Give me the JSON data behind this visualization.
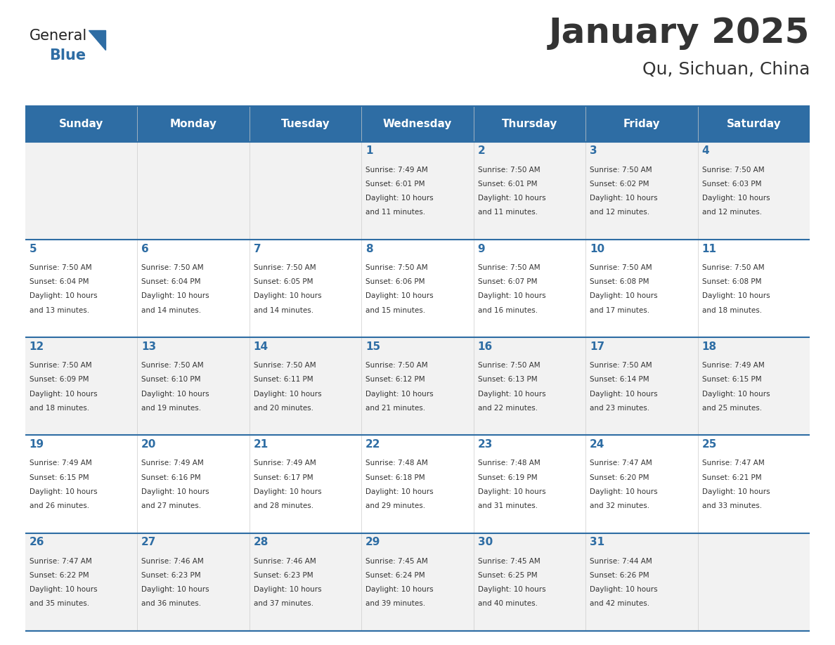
{
  "title": "January 2025",
  "subtitle": "Qu, Sichuan, China",
  "header_color": "#2E6DA4",
  "header_text_color": "#FFFFFF",
  "cell_bg_color": "#F2F2F2",
  "cell_bg_alt_color": "#FFFFFF",
  "day_number_color": "#2E6DA4",
  "text_color": "#333333",
  "border_color": "#2E6DA4",
  "days_of_week": [
    "Sunday",
    "Monday",
    "Tuesday",
    "Wednesday",
    "Thursday",
    "Friday",
    "Saturday"
  ],
  "calendar_data": [
    [
      {
        "day": "",
        "sunrise": "",
        "sunset": "",
        "daylight": ""
      },
      {
        "day": "",
        "sunrise": "",
        "sunset": "",
        "daylight": ""
      },
      {
        "day": "",
        "sunrise": "",
        "sunset": "",
        "daylight": ""
      },
      {
        "day": "1",
        "sunrise": "7:49 AM",
        "sunset": "6:01 PM",
        "daylight": "10 hours and 11 minutes."
      },
      {
        "day": "2",
        "sunrise": "7:50 AM",
        "sunset": "6:01 PM",
        "daylight": "10 hours and 11 minutes."
      },
      {
        "day": "3",
        "sunrise": "7:50 AM",
        "sunset": "6:02 PM",
        "daylight": "10 hours and 12 minutes."
      },
      {
        "day": "4",
        "sunrise": "7:50 AM",
        "sunset": "6:03 PM",
        "daylight": "10 hours and 12 minutes."
      }
    ],
    [
      {
        "day": "5",
        "sunrise": "7:50 AM",
        "sunset": "6:04 PM",
        "daylight": "10 hours and 13 minutes."
      },
      {
        "day": "6",
        "sunrise": "7:50 AM",
        "sunset": "6:04 PM",
        "daylight": "10 hours and 14 minutes."
      },
      {
        "day": "7",
        "sunrise": "7:50 AM",
        "sunset": "6:05 PM",
        "daylight": "10 hours and 14 minutes."
      },
      {
        "day": "8",
        "sunrise": "7:50 AM",
        "sunset": "6:06 PM",
        "daylight": "10 hours and 15 minutes."
      },
      {
        "day": "9",
        "sunrise": "7:50 AM",
        "sunset": "6:07 PM",
        "daylight": "10 hours and 16 minutes."
      },
      {
        "day": "10",
        "sunrise": "7:50 AM",
        "sunset": "6:08 PM",
        "daylight": "10 hours and 17 minutes."
      },
      {
        "day": "11",
        "sunrise": "7:50 AM",
        "sunset": "6:08 PM",
        "daylight": "10 hours and 18 minutes."
      }
    ],
    [
      {
        "day": "12",
        "sunrise": "7:50 AM",
        "sunset": "6:09 PM",
        "daylight": "10 hours and 18 minutes."
      },
      {
        "day": "13",
        "sunrise": "7:50 AM",
        "sunset": "6:10 PM",
        "daylight": "10 hours and 19 minutes."
      },
      {
        "day": "14",
        "sunrise": "7:50 AM",
        "sunset": "6:11 PM",
        "daylight": "10 hours and 20 minutes."
      },
      {
        "day": "15",
        "sunrise": "7:50 AM",
        "sunset": "6:12 PM",
        "daylight": "10 hours and 21 minutes."
      },
      {
        "day": "16",
        "sunrise": "7:50 AM",
        "sunset": "6:13 PM",
        "daylight": "10 hours and 22 minutes."
      },
      {
        "day": "17",
        "sunrise": "7:50 AM",
        "sunset": "6:14 PM",
        "daylight": "10 hours and 23 minutes."
      },
      {
        "day": "18",
        "sunrise": "7:49 AM",
        "sunset": "6:15 PM",
        "daylight": "10 hours and 25 minutes."
      }
    ],
    [
      {
        "day": "19",
        "sunrise": "7:49 AM",
        "sunset": "6:15 PM",
        "daylight": "10 hours and 26 minutes."
      },
      {
        "day": "20",
        "sunrise": "7:49 AM",
        "sunset": "6:16 PM",
        "daylight": "10 hours and 27 minutes."
      },
      {
        "day": "21",
        "sunrise": "7:49 AM",
        "sunset": "6:17 PM",
        "daylight": "10 hours and 28 minutes."
      },
      {
        "day": "22",
        "sunrise": "7:48 AM",
        "sunset": "6:18 PM",
        "daylight": "10 hours and 29 minutes."
      },
      {
        "day": "23",
        "sunrise": "7:48 AM",
        "sunset": "6:19 PM",
        "daylight": "10 hours and 31 minutes."
      },
      {
        "day": "24",
        "sunrise": "7:47 AM",
        "sunset": "6:20 PM",
        "daylight": "10 hours and 32 minutes."
      },
      {
        "day": "25",
        "sunrise": "7:47 AM",
        "sunset": "6:21 PM",
        "daylight": "10 hours and 33 minutes."
      }
    ],
    [
      {
        "day": "26",
        "sunrise": "7:47 AM",
        "sunset": "6:22 PM",
        "daylight": "10 hours and 35 minutes."
      },
      {
        "day": "27",
        "sunrise": "7:46 AM",
        "sunset": "6:23 PM",
        "daylight": "10 hours and 36 minutes."
      },
      {
        "day": "28",
        "sunrise": "7:46 AM",
        "sunset": "6:23 PM",
        "daylight": "10 hours and 37 minutes."
      },
      {
        "day": "29",
        "sunrise": "7:45 AM",
        "sunset": "6:24 PM",
        "daylight": "10 hours and 39 minutes."
      },
      {
        "day": "30",
        "sunrise": "7:45 AM",
        "sunset": "6:25 PM",
        "daylight": "10 hours and 40 minutes."
      },
      {
        "day": "31",
        "sunrise": "7:44 AM",
        "sunset": "6:26 PM",
        "daylight": "10 hours and 42 minutes."
      },
      {
        "day": "",
        "sunrise": "",
        "sunset": "",
        "daylight": ""
      }
    ]
  ],
  "logo_text_general": "General",
  "logo_text_blue": "Blue",
  "logo_color_general": "#222222",
  "logo_color_blue": "#2E6DA4",
  "logo_triangle_color": "#2E6DA4"
}
